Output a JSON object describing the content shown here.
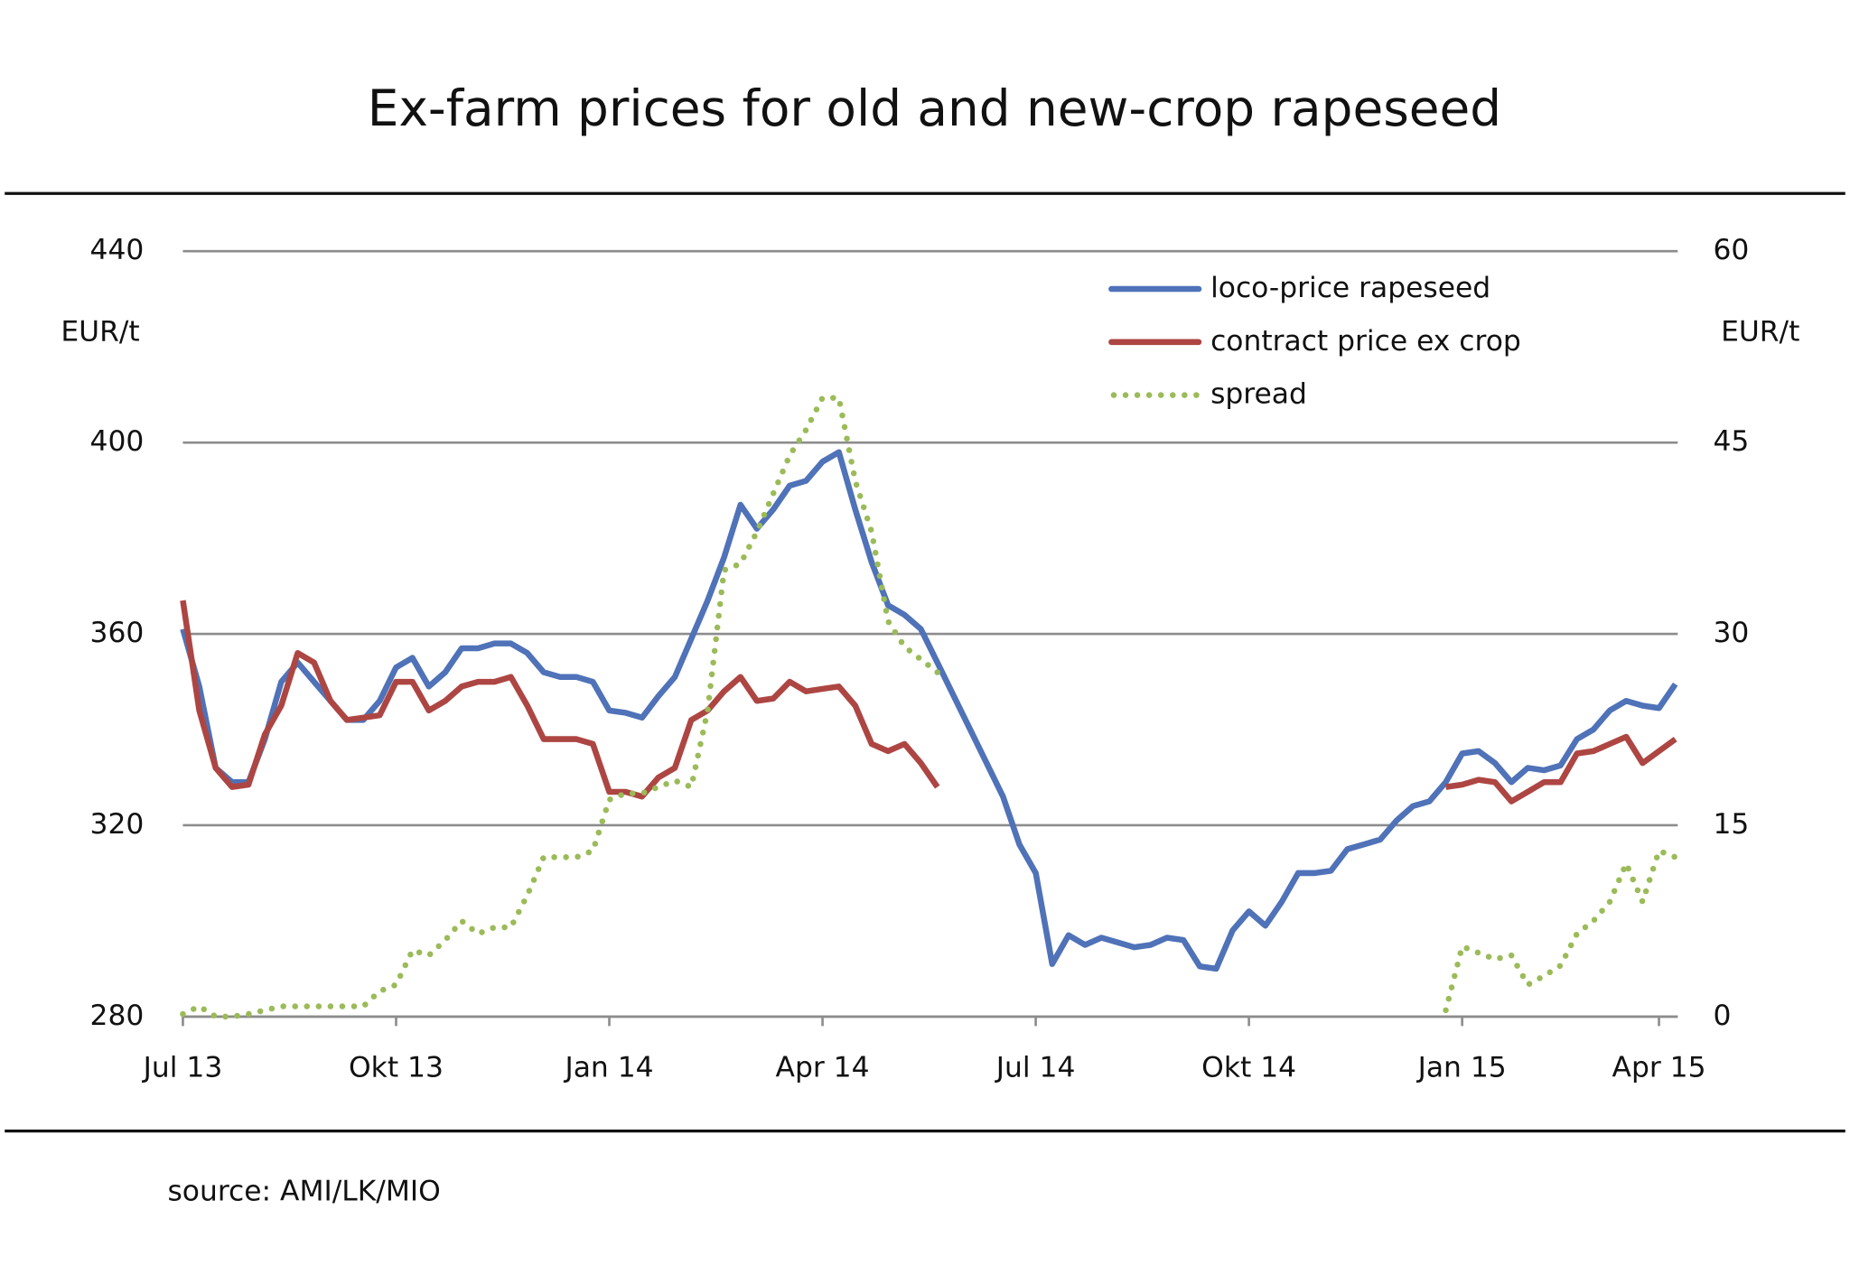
{
  "chart_data": {
    "type": "line",
    "title": "Ex-farm prices for old and new-crop rapeseed",
    "y_label": "EUR/t",
    "y2_label": "EUR/t",
    "source": "source: AMI/LK/MIO",
    "categories": [
      "Jul 13",
      null,
      null,
      null,
      null,
      null,
      null,
      null,
      null,
      null,
      null,
      null,
      null,
      "Okt 13",
      null,
      null,
      null,
      null,
      null,
      null,
      null,
      null,
      null,
      null,
      null,
      null,
      "Jan 14",
      null,
      null,
      null,
      null,
      null,
      null,
      null,
      null,
      null,
      null,
      null,
      null,
      "Apr 14",
      null,
      null,
      null,
      null,
      null,
      null,
      null,
      null,
      null,
      null,
      null,
      null,
      "Jul 14",
      null,
      null,
      null,
      null,
      null,
      null,
      null,
      null,
      null,
      null,
      null,
      null,
      "Okt 14",
      null,
      null,
      null,
      null,
      null,
      null,
      null,
      null,
      null,
      null,
      null,
      null,
      "Jan 15",
      null,
      null,
      null,
      null,
      null,
      null,
      null,
      null,
      null,
      null,
      null,
      "Apr 15",
      null
    ],
    "ylim": [
      280,
      440
    ],
    "yticks": [
      280,
      320,
      360,
      400,
      440
    ],
    "y2lim": [
      0,
      60
    ],
    "y2ticks": [
      0,
      15,
      30,
      45,
      60
    ],
    "grid": true,
    "legend": "upper right",
    "series": [
      {
        "name": "loco-price rapeseed",
        "color": "#4f72b8",
        "style": "solid",
        "values": [
          361,
          349,
          332,
          329,
          329,
          338,
          350,
          354,
          350,
          346,
          342,
          342,
          346,
          353,
          355,
          349,
          352,
          357,
          357,
          358,
          358,
          356,
          352,
          351,
          351,
          350,
          344,
          343.5,
          342.5,
          347,
          351,
          359,
          367,
          376,
          387,
          382,
          386,
          391,
          392,
          396,
          398,
          386,
          375,
          366,
          364,
          361,
          354,
          347,
          340,
          333,
          326,
          316,
          310,
          291,
          297,
          295,
          296.5,
          295.5,
          294.5,
          295,
          296.5,
          296,
          290.5,
          290,
          298,
          302,
          299,
          304,
          310,
          310,
          310.5,
          315,
          316,
          317,
          321,
          324,
          325,
          329,
          335,
          335.5,
          333,
          329,
          332,
          331.5,
          332.5,
          338,
          340,
          344,
          346,
          345,
          344.5,
          349.5
        ]
      },
      {
        "name": "contract price ex crop",
        "color": "#ad4643",
        "style": "solid",
        "values": [
          367,
          344,
          332,
          328,
          328.5,
          339,
          345,
          356,
          354,
          346,
          342,
          342.5,
          343,
          350,
          350,
          344,
          346,
          349,
          350,
          350,
          351,
          345,
          338,
          338,
          338,
          337,
          327,
          327,
          326,
          330,
          332,
          342,
          344,
          348,
          351,
          346,
          346.5,
          350,
          348,
          348.5,
          349,
          345,
          337,
          335.5,
          337,
          333,
          328,
          null,
          null,
          null,
          null,
          null,
          null,
          null,
          null,
          null,
          null,
          null,
          null,
          null,
          null,
          null,
          null,
          null,
          null,
          null,
          null,
          null,
          null,
          null,
          null,
          null,
          null,
          null,
          null,
          null,
          null,
          328,
          328.5,
          329.5,
          329,
          325,
          327,
          329,
          329,
          335,
          335.5,
          337,
          338.5,
          333,
          335.5,
          338
        ]
      },
      {
        "name": "spread",
        "color": "#9bbb59",
        "style": "dotted",
        "axis": "y2",
        "values": [
          0.2,
          0.8,
          0,
          0,
          0.2,
          0.5,
          0.8,
          0.8,
          0.8,
          0.8,
          0.8,
          0.8,
          2,
          2.5,
          5.2,
          4.8,
          6,
          7.5,
          6.5,
          7,
          7,
          9.5,
          12.5,
          12.5,
          12.5,
          13,
          17,
          17.5,
          17.5,
          18,
          18.5,
          18,
          24,
          35,
          35.5,
          38,
          41,
          44,
          46,
          48.5,
          48.5,
          42,
          38,
          31,
          29,
          28,
          27,
          null,
          null,
          null,
          null,
          null,
          null,
          null,
          null,
          null,
          null,
          null,
          null,
          null,
          null,
          null,
          null,
          null,
          null,
          null,
          null,
          null,
          null,
          null,
          null,
          null,
          null,
          null,
          null,
          null,
          null,
          0.5,
          5.5,
          5,
          4.5,
          4.8,
          2.5,
          3.2,
          4,
          6.5,
          7.5,
          9,
          12,
          9,
          13,
          12.5
        ]
      }
    ]
  }
}
